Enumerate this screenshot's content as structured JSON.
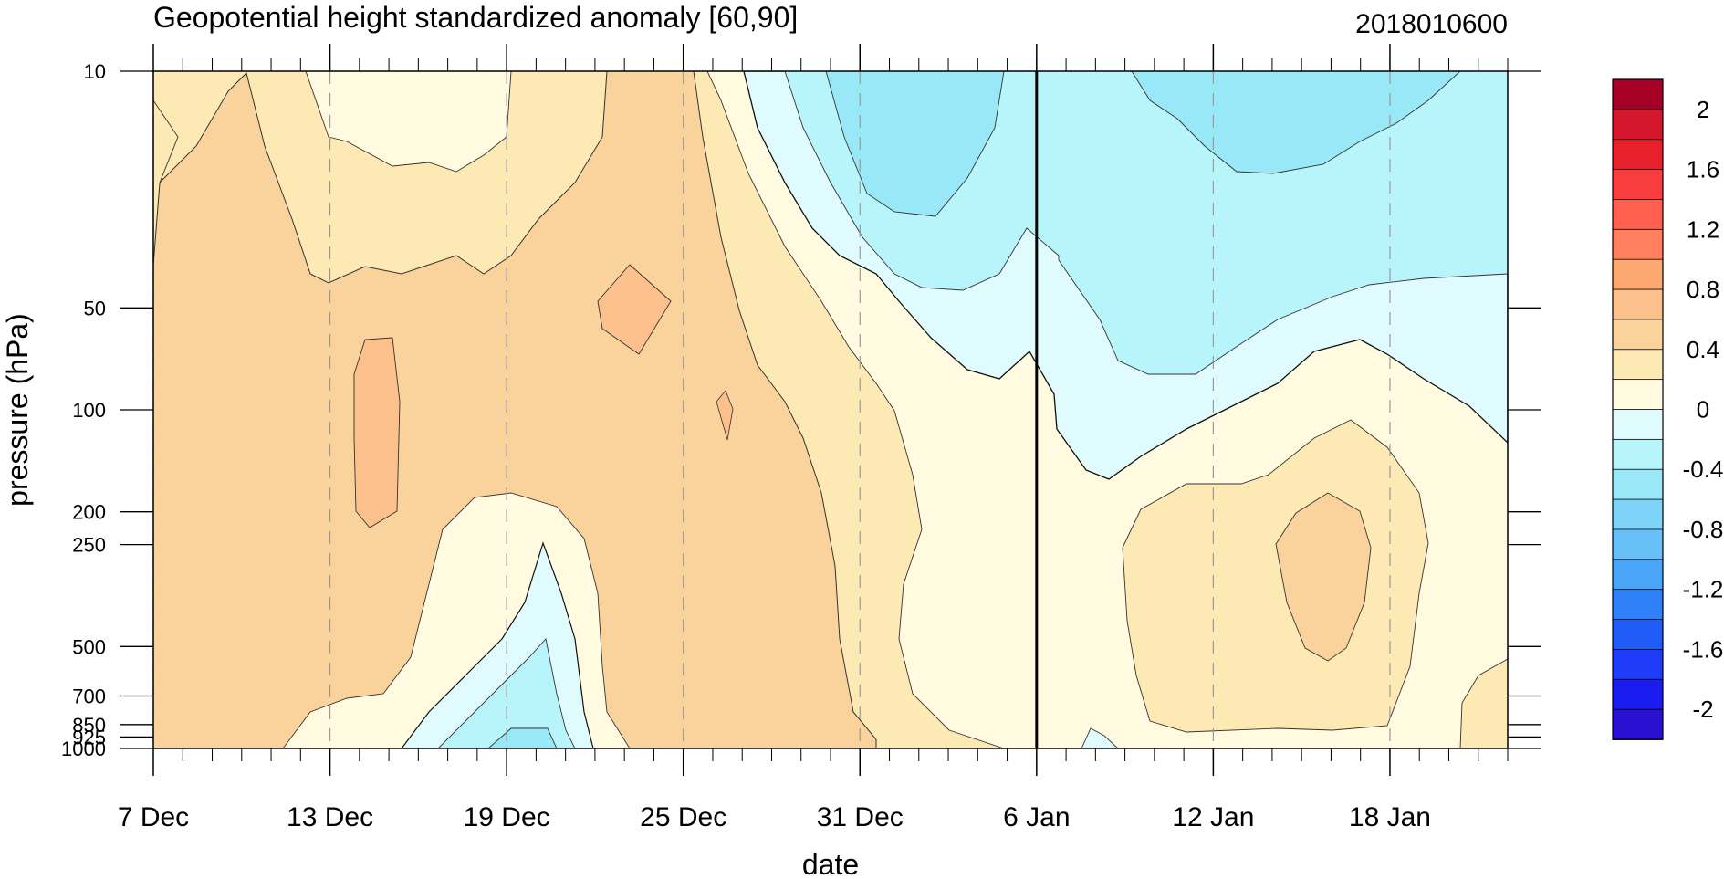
{
  "chart_data": {
    "type": "heatmap",
    "title": "Geopotential height standardized anomaly [60,90]",
    "timestamp": "2018010600",
    "xlabel": "date",
    "ylabel": "pressure (hPa)",
    "x_ticks": [
      {
        "date": "2017-12-07",
        "label": "7 Dec"
      },
      {
        "date": "2017-12-13",
        "label": "13 Dec"
      },
      {
        "date": "2017-12-19",
        "label": "19 Dec"
      },
      {
        "date": "2017-12-25",
        "label": "25 Dec"
      },
      {
        "date": "2017-12-31",
        "label": "31 Dec"
      },
      {
        "date": "2018-01-06",
        "label": "6 Jan"
      },
      {
        "date": "2018-01-12",
        "label": "12 Jan"
      },
      {
        "date": "2018-01-18",
        "label": "18 Jan"
      }
    ],
    "x_range": [
      "2017-12-07",
      "2018-01-22"
    ],
    "current_date": "2018-01-06",
    "y_ticks": [
      10,
      50,
      100,
      200,
      250,
      500,
      700,
      850,
      925,
      1000
    ],
    "y_tick_labels": [
      "10",
      "50",
      "100",
      "200",
      "250",
      "500",
      "700",
      "850",
      "925",
      "1000"
    ],
    "y_scale": "log",
    "y_range": [
      1000,
      10
    ],
    "grid": "dashed vertical lines at labeled dates",
    "colorbar": {
      "labels": [
        "2",
        "1.6",
        "1.2",
        "0.8",
        "0.4",
        "0",
        "-0.4",
        "-0.8",
        "-1.2",
        "-1.6",
        "-2"
      ],
      "levels": [
        -2.2,
        -2.0,
        -1.8,
        -1.6,
        -1.4,
        -1.2,
        -1.0,
        -0.8,
        -0.6,
        -0.4,
        -0.2,
        0,
        0.2,
        0.4,
        0.6,
        0.8,
        1.0,
        1.2,
        1.4,
        1.6,
        1.8,
        2.0,
        2.2
      ],
      "colors": [
        "#a50026",
        "#d4172c",
        "#e8202c",
        "#f73d3d",
        "#ff5f4f",
        "#ff7f5f",
        "#fda870",
        "#fcc08c",
        "#fad29b",
        "#fde9b4",
        "#fffae0",
        "#e0fbfd",
        "#b8f5fb",
        "#98e8f8",
        "#7ed4f8",
        "#68c0f8",
        "#4aa4f8",
        "#3080f8",
        "#1f5cf8",
        "#1f3cf8",
        "#1a1cf0",
        "#2a10d0"
      ],
      "placement": "right"
    },
    "series": [
      {
        "name": "",
        "note_levels_used": [
          -0.6,
          -0.4,
          -0.2,
          0,
          0.2,
          0.4,
          0.6,
          0.8
        ],
        "approximate_regions": [
          {
            "level": 0.6,
            "dates": [
              "2017-12-07",
              "2017-12-12"
            ],
            "pressure_hPa": [
              40,
              950
            ]
          },
          {
            "level": 0.6,
            "dates": [
              "2017-12-13",
              "2017-12-28"
            ],
            "pressure_hPa": [
              40,
              400
            ]
          },
          {
            "level": 0.8,
            "dates": [
              "2017-12-14",
              "2017-12-16"
            ],
            "pressure_hPa": [
              80,
              230
            ]
          },
          {
            "level": 0.2,
            "dates": [
              "2017-12-13",
              "2017-12-18"
            ],
            "pressure_hPa": [
              10,
              20
            ]
          },
          {
            "level": -0.2,
            "dates": [
              "2017-12-19",
              "2017-12-22"
            ],
            "pressure_hPa": [
              300,
              1000
            ]
          },
          {
            "level": -0.4,
            "dates": [
              "2017-12-20",
              "2017-12-21"
            ],
            "pressure_hPa": [
              500,
              1000
            ]
          },
          {
            "level": -0.6,
            "dates": [
              "2017-12-31",
              "2018-01-04"
            ],
            "pressure_hPa": [
              10,
              30
            ]
          },
          {
            "level": -0.6,
            "dates": [
              "2018-01-08",
              "2018-01-18"
            ],
            "pressure_hPa": [
              10,
              45
            ]
          },
          {
            "level": -0.4,
            "dates": [
              "2017-12-29",
              "2018-01-22"
            ],
            "pressure_hPa": [
              10,
              70
            ]
          },
          {
            "level": -0.2,
            "dates": [
              "2017-12-28",
              "2018-01-22"
            ],
            "pressure_hPa": [
              10,
              120
            ]
          },
          {
            "level": 0.4,
            "dates": [
              "2018-01-09",
              "2018-01-21"
            ],
            "pressure_hPa": [
              200,
              920
            ]
          },
          {
            "level": 0.6,
            "dates": [
              "2018-01-14",
              "2018-01-16"
            ],
            "pressure_hPa": [
              200,
              550
            ]
          }
        ]
      }
    ]
  }
}
